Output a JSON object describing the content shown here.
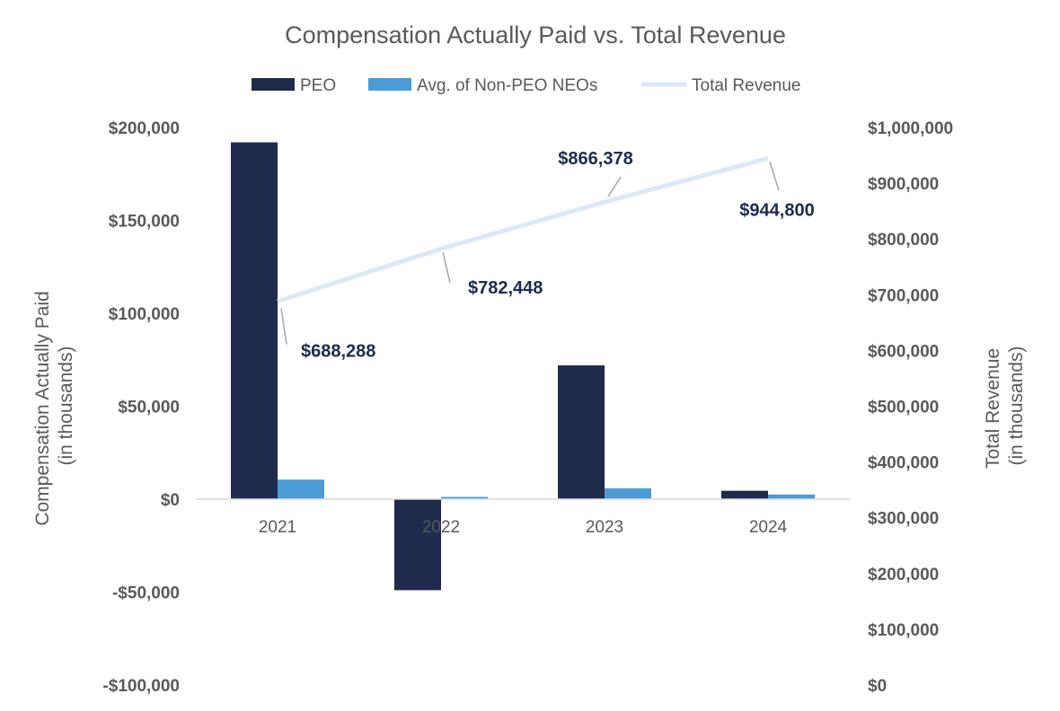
{
  "chart_data": {
    "type": "bar",
    "title": "Compensation Actually Paid vs. Total Revenue",
    "categories": [
      "2021",
      "2022",
      "2023",
      "2024"
    ],
    "series": [
      {
        "name": "PEO",
        "kind": "bar",
        "axis": "left",
        "color": "#1f2a4d",
        "values": [
          192000,
          -49000,
          72000,
          4500
        ]
      },
      {
        "name": "Avg. of Non-PEO NEOs",
        "kind": "bar",
        "axis": "left",
        "color": "#4a9bd6",
        "values": [
          10500,
          1200,
          5800,
          2500
        ]
      },
      {
        "name": "Total Revenue",
        "kind": "line",
        "axis": "right",
        "color": "#dde8f5",
        "values": [
          688288,
          782448,
          866378,
          944800
        ],
        "labels": [
          "$688,288",
          "$782,448",
          "$866,378",
          "$944,800"
        ]
      }
    ],
    "y_left": {
      "label_line1": "Compensation Actually Paid",
      "label_line2": "(in thousands)",
      "min": -100000,
      "max": 200000,
      "ticks": [
        200000,
        150000,
        100000,
        50000,
        0,
        -50000,
        -100000
      ],
      "tick_labels": [
        "$200,000",
        "$150,000",
        "$100,000",
        "$50,000",
        "$0",
        "-$50,000",
        "-$100,000"
      ]
    },
    "y_right": {
      "label_line1": "Total Revenue",
      "label_line2": "(in thousands)",
      "min": 0,
      "max": 1000000,
      "ticks": [
        1000000,
        900000,
        800000,
        700000,
        600000,
        500000,
        400000,
        300000,
        200000,
        100000,
        0
      ],
      "tick_labels": [
        "$1,000,000",
        "$900,000",
        "$800,000",
        "$700,000",
        "$600,000",
        "$500,000",
        "$400,000",
        "$300,000",
        "$200,000",
        "$100,000",
        "$0"
      ]
    },
    "legend": [
      "PEO",
      "Avg. of Non-PEO NEOs",
      "Total Revenue"
    ],
    "legend_position": "top",
    "grid": false
  }
}
